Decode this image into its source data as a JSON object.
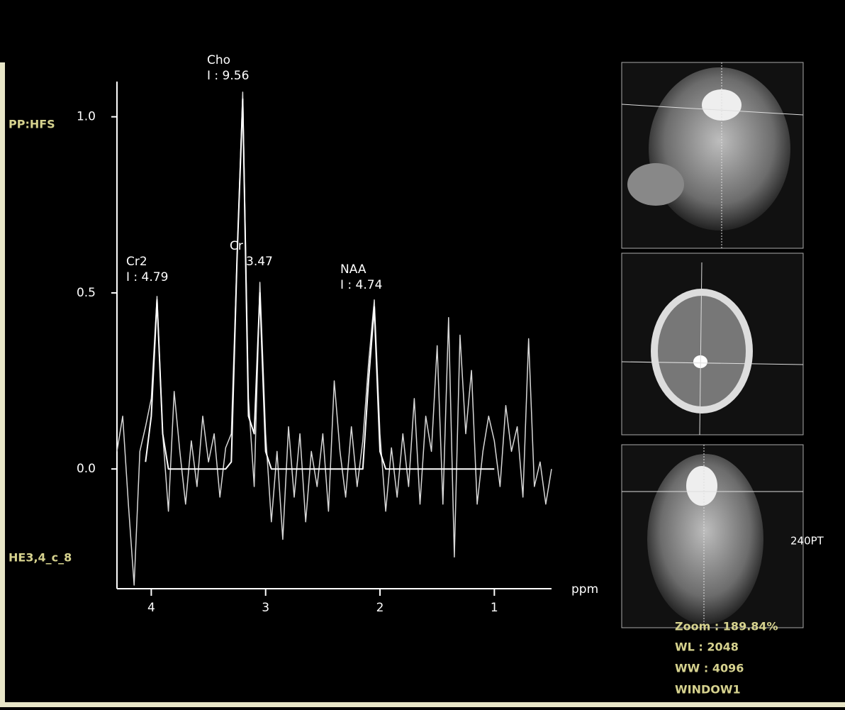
{
  "chart_data": {
    "type": "line",
    "x_label": "ppm",
    "x": [
      4.3,
      4.25,
      4.2,
      4.15,
      4.1,
      4.05,
      4.0,
      3.95,
      3.9,
      3.85,
      3.8,
      3.75,
      3.7,
      3.65,
      3.6,
      3.55,
      3.5,
      3.45,
      3.4,
      3.35,
      3.3,
      3.25,
      3.2,
      3.15,
      3.1,
      3.05,
      3.0,
      2.95,
      2.9,
      2.85,
      2.8,
      2.75,
      2.7,
      2.65,
      2.6,
      2.55,
      2.5,
      2.45,
      2.4,
      2.35,
      2.3,
      2.25,
      2.2,
      2.15,
      2.1,
      2.05,
      2.0,
      1.95,
      1.9,
      1.85,
      1.8,
      1.75,
      1.7,
      1.65,
      1.6,
      1.55,
      1.5,
      1.45,
      1.4,
      1.35,
      1.3,
      1.25,
      1.2,
      1.15,
      1.1,
      1.05,
      1.0,
      0.95,
      0.9,
      0.85,
      0.8,
      0.75,
      0.7,
      0.65,
      0.6,
      0.55,
      0.5
    ],
    "series": [
      {
        "color": "#d8d8d8",
        "values": [
          0.05,
          0.15,
          -0.1,
          -0.33,
          0.05,
          0.12,
          0.2,
          0.49,
          0.1,
          -0.12,
          0.22,
          0.05,
          -0.1,
          0.08,
          -0.05,
          0.15,
          0.02,
          0.1,
          -0.08,
          0.06,
          0.1,
          0.6,
          1.07,
          0.2,
          -0.05,
          0.53,
          0.1,
          -0.15,
          0.05,
          -0.2,
          0.12,
          -0.08,
          0.1,
          -0.15,
          0.05,
          -0.05,
          0.1,
          -0.12,
          0.25,
          0.05,
          -0.08,
          0.12,
          -0.05,
          0.08,
          0.3,
          0.48,
          0.1,
          -0.12,
          0.06,
          -0.08,
          0.1,
          -0.05,
          0.2,
          -0.1,
          0.15,
          0.05,
          0.35,
          -0.1,
          0.43,
          -0.25,
          0.38,
          0.1,
          0.28,
          -0.1,
          0.05,
          0.15,
          0.08,
          -0.05,
          0.18,
          0.05,
          0.12,
          -0.08,
          0.37,
          -0.05,
          0.02,
          -0.1,
          0.0
        ]
      },
      {
        "color": "#ffffff",
        "values": [
          null,
          null,
          null,
          null,
          null,
          0.02,
          0.15,
          0.48,
          0.1,
          0.0,
          0,
          0,
          0,
          0,
          0,
          0,
          0,
          0,
          0,
          0,
          0.02,
          0.6,
          1.05,
          0.15,
          0.1,
          0.5,
          0.05,
          0,
          0,
          0,
          0,
          0,
          0,
          0,
          0,
          0,
          0,
          0,
          0,
          0,
          0,
          0,
          0,
          0,
          0.25,
          0.46,
          0.05,
          0,
          0,
          0,
          0,
          0,
          0,
          0,
          0,
          0,
          0,
          0,
          0,
          0,
          0,
          0,
          0,
          0,
          0,
          0,
          0,
          null,
          null,
          null,
          null,
          null,
          null,
          null,
          null,
          null,
          null
        ]
      }
    ],
    "xlim": [
      4.3,
      0.5
    ],
    "xticks": [
      4,
      3,
      2,
      1
    ],
    "ylim": [
      -0.34,
      1.1
    ],
    "yticks": [
      {
        "value": 0,
        "label": "0.0"
      },
      {
        "value": 0.5,
        "label": "0.5"
      },
      {
        "value": 1,
        "label": "1.0"
      }
    ],
    "peaks": [
      {
        "name": "Cho",
        "integral": "I : 9.56"
      },
      {
        "name": "Cr2",
        "integral": "I : 4.79"
      },
      {
        "name": "Cr",
        "integral": "3.47"
      },
      {
        "name": "NAA",
        "integral": "I : 4.74"
      }
    ]
  },
  "overlay": {
    "position": "PP:HFS",
    "series_name": "HE3,4_c_8",
    "slice_label": "240PT",
    "zoom": "Zoom : 189.84%",
    "wl": "WL : 2048",
    "ww": "WW : 4096",
    "window": "WINDOW1"
  }
}
